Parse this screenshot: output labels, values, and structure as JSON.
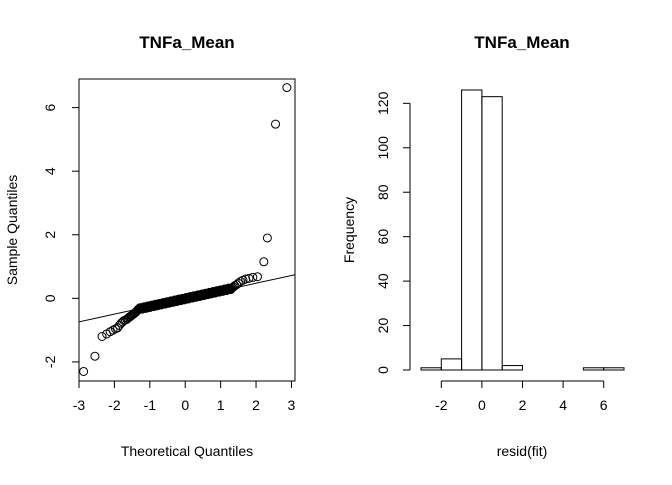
{
  "chart_data": [
    {
      "type": "scatter",
      "title": "TNFa_Mean",
      "xlabel": "Theoretical Quantiles",
      "ylabel": "Sample Quantiles",
      "xlim": [
        -3.0,
        3.1
      ],
      "ylim": [
        -2.6,
        6.9
      ],
      "xticks": [
        -3,
        -2,
        -1,
        0,
        1,
        2,
        3
      ],
      "yticks": [
        -2,
        0,
        2,
        4,
        6
      ],
      "reference_line": {
        "x": [
          -3.5,
          3.5
        ],
        "y": [
          -0.86,
          0.84
        ]
      },
      "marker": "open-circle",
      "tail_points": {
        "x": [
          -2.87,
          -2.55,
          -2.35,
          -2.22,
          -2.12,
          -2.04,
          -1.97,
          -1.91,
          -1.86,
          -1.81,
          -1.77,
          -1.73,
          -1.69,
          -1.65,
          -1.62,
          -1.59,
          -1.56,
          -1.53,
          -1.5,
          -1.47,
          -1.44,
          -1.42,
          -1.39,
          -1.37,
          -1.35,
          -1.33,
          1.33,
          1.36,
          1.4,
          1.45,
          1.5,
          1.56,
          1.63,
          1.71,
          1.8,
          1.91,
          2.04,
          2.22,
          2.32,
          2.55,
          2.87
        ],
        "y": [
          -2.3,
          -1.82,
          -1.2,
          -1.12,
          -1.05,
          -1.0,
          -0.96,
          -0.93,
          -0.85,
          -0.78,
          -0.74,
          -0.7,
          -0.68,
          -0.66,
          -0.63,
          -0.6,
          -0.58,
          -0.55,
          -0.53,
          -0.5,
          -0.48,
          -0.45,
          -0.43,
          -0.4,
          -0.38,
          -0.35,
          0.33,
          0.36,
          0.4,
          0.43,
          0.48,
          0.53,
          0.57,
          0.61,
          0.63,
          0.66,
          0.68,
          1.15,
          1.9,
          5.48,
          6.63
        ]
      },
      "central_band": {
        "x_from": -1.3,
        "x_to": 1.3,
        "y_from": -0.33,
        "y_to": 0.31,
        "n": 216
      }
    },
    {
      "type": "bar",
      "title": "TNFa_Mean",
      "xlabel": "resid(fit)",
      "ylabel": "Frequency",
      "bin_edges": [
        -3,
        -2,
        -1,
        0,
        1,
        2,
        3,
        4,
        5,
        6,
        7
      ],
      "values": [
        1,
        5,
        126,
        123,
        2,
        0,
        0,
        0,
        1,
        1
      ],
      "xticks": [
        -2,
        0,
        2,
        4,
        6
      ],
      "yticks": [
        0,
        20,
        40,
        60,
        80,
        100,
        120
      ],
      "ylim": [
        0,
        126
      ]
    }
  ]
}
